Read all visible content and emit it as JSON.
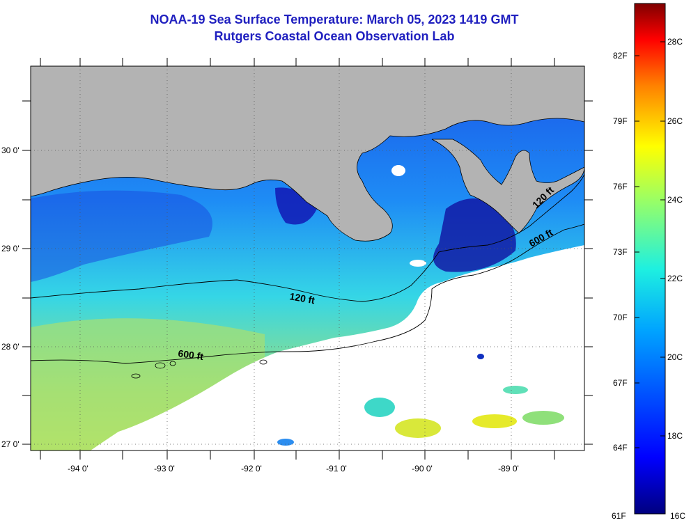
{
  "title": "NOAA-19 Sea Surface Temperature:  March 05, 2023 1419 GMT",
  "subtitle": "Rutgers Coastal Ocean Observation Lab",
  "map": {
    "lon_labels": [
      "-94 0'",
      "-93 0'",
      "-92 0'",
      "-91 0'",
      "-90 0'",
      "-89 0'"
    ],
    "lat_labels": [
      "30 0'",
      "29 0'",
      "28 0'",
      "27 0'"
    ],
    "contour_labels": [
      {
        "text": "120 ft",
        "key": "c120_west"
      },
      {
        "text": "600 ft",
        "key": "c600_west"
      },
      {
        "text": "120 ft",
        "key": "c120_east"
      },
      {
        "text": "600 ft",
        "key": "c600_east"
      }
    ]
  },
  "colorbar": {
    "fahrenheit": [
      "82F",
      "79F",
      "76F",
      "73F",
      "70F",
      "67F",
      "64F",
      "61F"
    ],
    "celsius": [
      "28C",
      "26C",
      "24C",
      "22C",
      "20C",
      "18C",
      "16C"
    ]
  },
  "colors": {
    "land": "#b3b3b3",
    "cloud": "#ffffff",
    "title": "#1f1fbf",
    "warm_max": "#7f0000",
    "cold_min": "#00007f"
  }
}
